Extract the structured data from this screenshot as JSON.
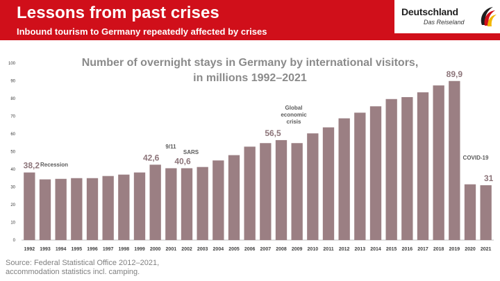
{
  "header": {
    "title": "Lessons from past crises",
    "subtitle": "Inbound tourism to Germany repeatedly affected by crises",
    "background_color": "#d00f1a"
  },
  "logo": {
    "name": "Deutschland",
    "tagline": "Das Reiseland"
  },
  "source": {
    "line1": "Source: Federal Statistical Office 2012–2021,",
    "line2": "accommodation statistics incl. camping."
  },
  "chart_data": {
    "type": "bar",
    "title_line1": "Number of overnight stays in Germany by international visitors,",
    "title_line2": "in millions 1992–2021",
    "categories": [
      "1992",
      "1993",
      "1994",
      "1995",
      "1996",
      "1997",
      "1998",
      "1999",
      "2000",
      "2001",
      "2002",
      "2003",
      "2004",
      "2005",
      "2006",
      "2007",
      "2008",
      "2009",
      "2010",
      "2011",
      "2012",
      "2013",
      "2014",
      "2015",
      "2016",
      "2017",
      "2018",
      "2019",
      "2020",
      "2021"
    ],
    "values": [
      38.2,
      34.3,
      34.6,
      35.0,
      35.0,
      36.2,
      37.0,
      38.2,
      42.6,
      40.6,
      40.6,
      41.3,
      45.0,
      48.0,
      52.8,
      54.8,
      56.5,
      54.8,
      60.3,
      63.7,
      68.8,
      72.0,
      75.6,
      79.7,
      80.8,
      83.5,
      87.4,
      89.9,
      31.5,
      31.0
    ],
    "ylim": [
      0,
      100
    ],
    "yticks": [
      0,
      10,
      20,
      30,
      40,
      50,
      60,
      70,
      80,
      90,
      100
    ],
    "bar_color": "#9b7f83",
    "grid": false,
    "value_labels": [
      {
        "year": "1992",
        "text": "38,2"
      },
      {
        "year": "2000",
        "text": "42,6"
      },
      {
        "year": "2002",
        "text": "40,6"
      },
      {
        "year": "2008",
        "text": "56,5"
      },
      {
        "year": "2019",
        "text": "89,9"
      },
      {
        "year": "2021",
        "text": "31"
      }
    ],
    "annotations": [
      {
        "year": "1993",
        "lines": [
          "Recession"
        ]
      },
      {
        "year": "2001",
        "lines": [
          "9/11"
        ]
      },
      {
        "year": "2002",
        "lines": [
          "SARS"
        ]
      },
      {
        "year": "2009",
        "lines": [
          "Global",
          "economic",
          "crisis"
        ]
      },
      {
        "year": "2021",
        "lines": [
          "COVID-19"
        ]
      }
    ]
  }
}
